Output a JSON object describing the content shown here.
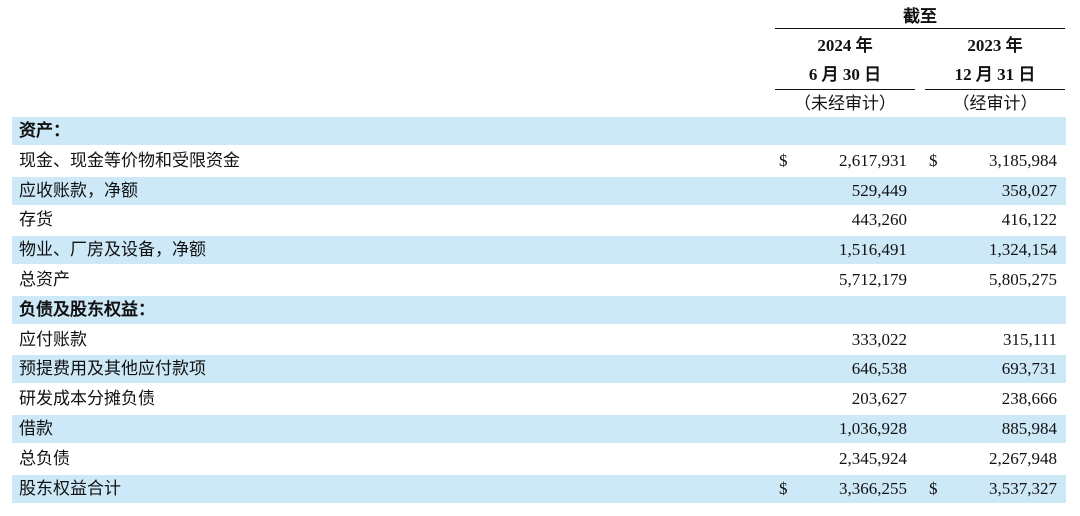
{
  "header": {
    "title": "截至",
    "columns": [
      {
        "year": "2024 年",
        "date": "6 月 30 日",
        "note": "（未经审计）"
      },
      {
        "year": "2023 年",
        "date": "12 月 31 日",
        "note": "（经审计）"
      }
    ]
  },
  "table": {
    "rows": [
      {
        "label": "资产：",
        "section": true
      },
      {
        "label": "现金、现金等价物和受限资金",
        "cells": [
          {
            "symbol": "$",
            "value": "2,617,931"
          },
          {
            "symbol": "$",
            "value": "3,185,984"
          }
        ]
      },
      {
        "label": "应收账款，净额",
        "cells": [
          {
            "value": "529,449"
          },
          {
            "value": "358,027"
          }
        ]
      },
      {
        "label": "存货",
        "cells": [
          {
            "value": "443,260"
          },
          {
            "value": "416,122"
          }
        ]
      },
      {
        "label": "物业、厂房及设备，净额",
        "cells": [
          {
            "value": "1,516,491"
          },
          {
            "value": "1,324,154"
          }
        ]
      },
      {
        "label": "总资产",
        "cells": [
          {
            "value": "5,712,179"
          },
          {
            "value": "5,805,275"
          }
        ]
      },
      {
        "label": "负债及股东权益：",
        "section": true
      },
      {
        "label": "应付账款",
        "cells": [
          {
            "value": "333,022"
          },
          {
            "value": "315,111"
          }
        ]
      },
      {
        "label": "预提费用及其他应付款项",
        "cells": [
          {
            "value": "646,538"
          },
          {
            "value": "693,731"
          }
        ]
      },
      {
        "label": "研发成本分摊负债",
        "cells": [
          {
            "value": "203,627"
          },
          {
            "value": "238,666"
          }
        ]
      },
      {
        "label": "借款",
        "cells": [
          {
            "value": "1,036,928"
          },
          {
            "value": "885,984"
          }
        ]
      },
      {
        "label": "总负债",
        "cells": [
          {
            "value": "2,345,924"
          },
          {
            "value": "2,267,948"
          }
        ]
      },
      {
        "label": "股东权益合计",
        "cells": [
          {
            "symbol": "$",
            "value": "3,366,255"
          },
          {
            "symbol": "$",
            "value": "3,537,327"
          }
        ]
      }
    ]
  }
}
